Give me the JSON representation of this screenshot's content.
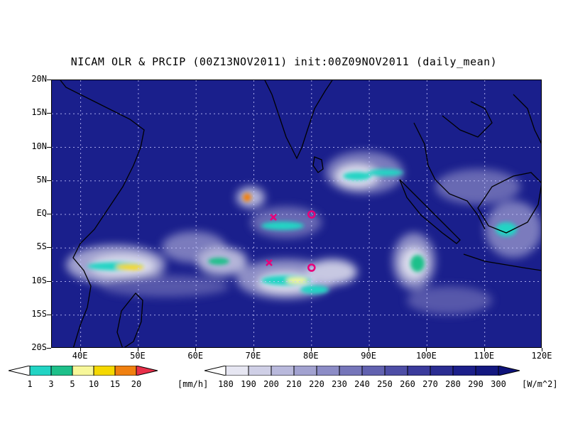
{
  "title": "NICAM OLR & PRCIP (00Z13NOV2011) init:00Z09NOV2011 (daily_mean)",
  "colors": {
    "ocean_base": "#1a1f8c",
    "cloud_light": "#ffffff",
    "precip_cyan": "#22d4c4",
    "precip_green": "#1ec08a",
    "precip_yellow_light": "#f7f79a",
    "precip_yellow": "#f5d800",
    "precip_orange": "#f08010",
    "precip_red": "#e8304a",
    "marker": "#e8007a"
  },
  "map": {
    "lon_range": [
      35,
      120
    ],
    "lat_range": [
      -20,
      20
    ],
    "lat_labels": [
      "20N",
      "15N",
      "10N",
      "5N",
      "EQ",
      "5S",
      "10S",
      "15S",
      "20S"
    ],
    "lon_labels": [
      "40E",
      "50E",
      "60E",
      "70E",
      "80E",
      "90E",
      "100E",
      "110E",
      "120E"
    ],
    "markers": [
      {
        "type": "x",
        "lon": 73,
        "lat": -0.5
      },
      {
        "type": "x",
        "lon": 72.5,
        "lat": -7.5
      },
      {
        "type": "o",
        "lon": 80,
        "lat": 0
      },
      {
        "type": "o",
        "lon": 80,
        "lat": -8
      }
    ]
  },
  "precip_colorbar": {
    "labels": [
      "1",
      "3",
      "5",
      "10",
      "15",
      "20"
    ],
    "unit": "[mm/h]",
    "colors": [
      "#22d4c4",
      "#1ec08a",
      "#f7f79a",
      "#f5d800",
      "#f08010",
      "#e8304a"
    ]
  },
  "olr_colorbar": {
    "labels": [
      "180",
      "190",
      "200",
      "210",
      "220",
      "230",
      "240",
      "250",
      "260",
      "270",
      "280",
      "290",
      "300"
    ],
    "unit": "[W/m^2]",
    "colors": [
      "#ffffff",
      "#e6e6f2",
      "#cfcfe6",
      "#b9b9dc",
      "#a2a2d0",
      "#8c8cc6",
      "#7676ba",
      "#6262b0",
      "#4e4ea6",
      "#3b3b9c",
      "#2b2d92",
      "#1c1f8a",
      "#141880",
      "#0e127a"
    ]
  }
}
